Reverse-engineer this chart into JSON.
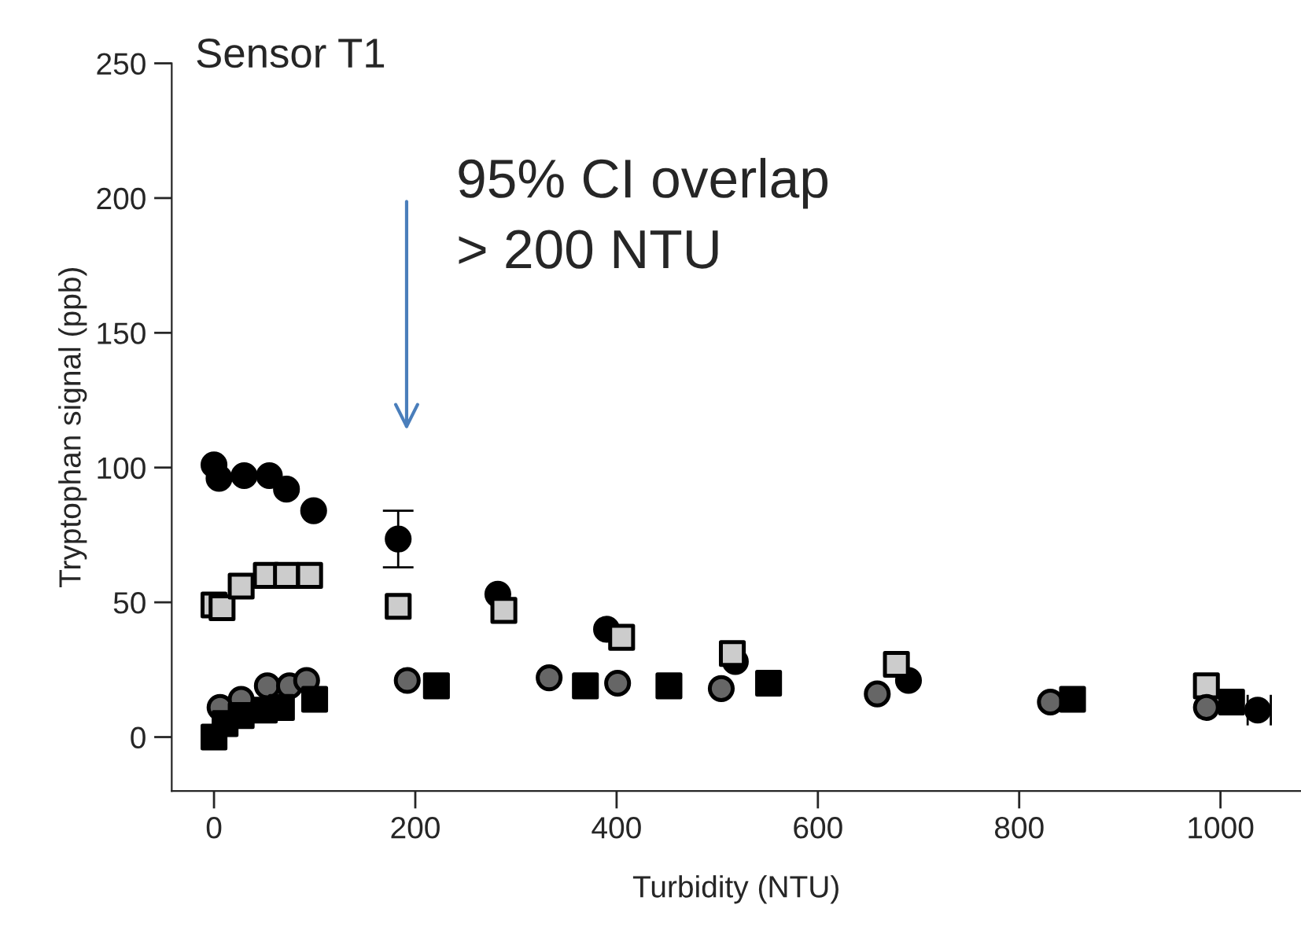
{
  "chart_data": {
    "type": "scatter",
    "title": "Sensor T1",
    "xlabel": "Turbidity (NTU)",
    "ylabel": "Tryptophan signal (ppb)",
    "xlim": [
      -42,
      1080
    ],
    "ylim": [
      -20,
      250
    ],
    "xticks": [
      0,
      200,
      400,
      600,
      800,
      1000
    ],
    "yticks": [
      0,
      50,
      100,
      150,
      200,
      250
    ],
    "grid": false,
    "legend": false,
    "series": [
      {
        "color": "#000000",
        "marker": "circle",
        "x": [
          0,
          5,
          30,
          55,
          72,
          99,
          183,
          282,
          390,
          518,
          690,
          1037
        ],
        "values": [
          101,
          96,
          97,
          97,
          92,
          84,
          73.5,
          53,
          40,
          28,
          21,
          10
        ],
        "errors": [
          null,
          null,
          null,
          null,
          null,
          null,
          [
            63,
            84
          ],
          null,
          null,
          null,
          null,
          null
        ],
        "xerrors": [
          null,
          null,
          null,
          null,
          null,
          null,
          null,
          null,
          null,
          null,
          null,
          [
            1027,
            1050
          ]
        ]
      },
      {
        "color": "#cccccc",
        "marker": "square",
        "x": [
          0,
          8,
          27,
          52,
          72,
          95,
          183,
          288,
          405,
          515,
          678,
          986
        ],
        "values": [
          49,
          48,
          56,
          60,
          60,
          60,
          48.5,
          47,
          37,
          31,
          27,
          19
        ]
      },
      {
        "color": "#666666",
        "marker": "circle",
        "x": [
          6,
          27,
          53,
          75,
          92,
          192,
          333,
          401,
          504,
          659,
          831,
          986
        ],
        "values": [
          11,
          14,
          19,
          19,
          21,
          21,
          22,
          20,
          18,
          16,
          13,
          11
        ]
      },
      {
        "color": "#000000",
        "marker": "square",
        "x": [
          0,
          11,
          27,
          50,
          67,
          100,
          221,
          369,
          452,
          551,
          853,
          1011
        ],
        "values": [
          0,
          5,
          8,
          10,
          11,
          14,
          19,
          19,
          19,
          20,
          14,
          13
        ]
      }
    ],
    "annotations": [
      "95% CI overlap\n> 200 NTU"
    ]
  }
}
